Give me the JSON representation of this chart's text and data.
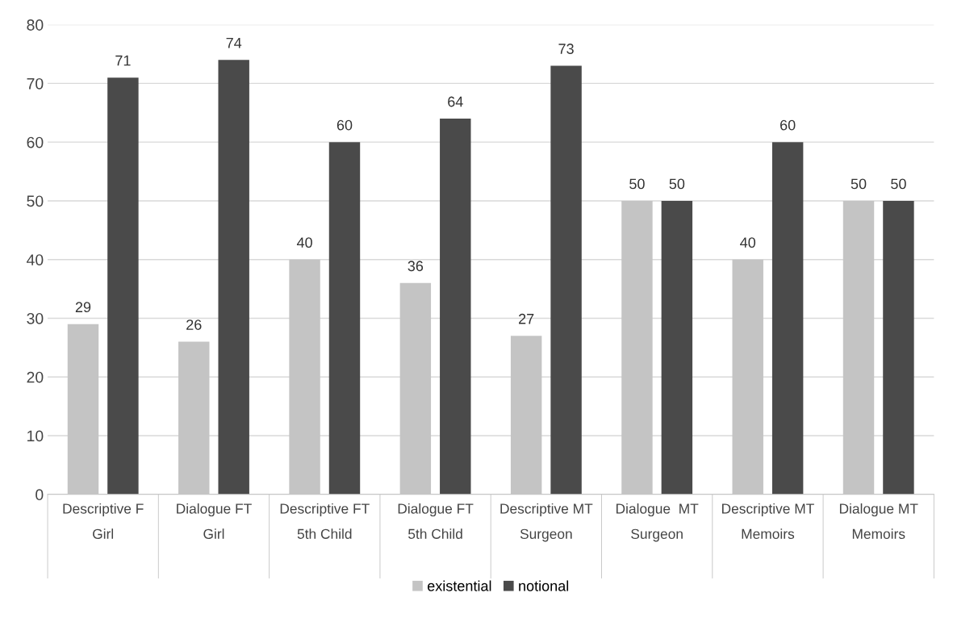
{
  "chart_data": {
    "type": "bar",
    "categories": [
      "Descriptive F\nGirl",
      "Dialogue FT\nGirl",
      "Descriptive FT\n5th Child",
      "Dialogue FT\n5th Child",
      "Descriptive MT\nSurgeon",
      "Dialogue  MT\nSurgeon",
      "Descriptive MT\nMemoirs",
      "Dialogue MT\nMemoirs"
    ],
    "series": [
      {
        "name": "existential",
        "color": "#c4c4c4",
        "values": [
          29,
          26,
          40,
          36,
          27,
          50,
          40,
          50
        ]
      },
      {
        "name": "notional",
        "color": "#4a4a4a",
        "values": [
          71,
          74,
          60,
          64,
          73,
          50,
          60,
          50
        ]
      }
    ],
    "ylim": [
      0,
      80
    ],
    "yticks": [
      0,
      10,
      20,
      30,
      40,
      50,
      60,
      70,
      80
    ],
    "grid": "y",
    "legend": "bottom",
    "data_labels": true
  }
}
